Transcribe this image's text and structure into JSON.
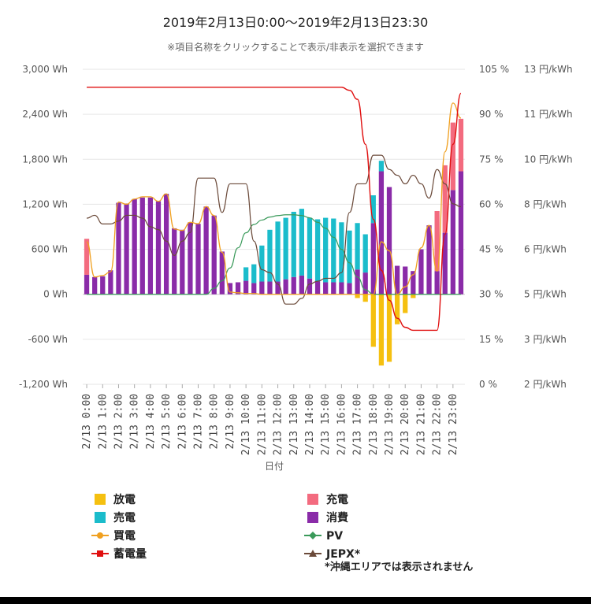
{
  "title": "2019年2月13日0:00～2019年2月13日23:30",
  "subtitle": "※項目名称をクリックすることで表示/非表示を選択できます",
  "chart_data": {
    "type": "bar",
    "xlabel": "日付",
    "x_tick_labels": [
      "2/13 0:00",
      "2/13 1:00",
      "2/13 2:00",
      "2/13 3:00",
      "2/13 4:00",
      "2/13 5:00",
      "2/13 6:00",
      "2/13 7:00",
      "2/13 8:00",
      "2/13 9:00",
      "2/13 10:00",
      "2/13 11:00",
      "2/13 12:00",
      "2/13 13:00",
      "2/13 14:00",
      "2/13 15:00",
      "2/13 16:00",
      "2/13 17:00",
      "2/13 18:00",
      "2/13 19:00",
      "2/13 20:00",
      "2/13 21:00",
      "2/13 22:00",
      "2/13 23:00"
    ],
    "y_left": {
      "unit": "Wh",
      "range": [
        -1200,
        3000
      ],
      "ticks": [
        "-1,200 Wh",
        "-600 Wh",
        "0 Wh",
        "600 Wh",
        "1,200 Wh",
        "1,800 Wh",
        "2,400 Wh",
        "3,000 Wh"
      ]
    },
    "y_mid": {
      "unit": "%",
      "range": [
        0,
        105
      ],
      "ticks": [
        "0 %",
        "15 %",
        "30 %",
        "45 %",
        "60 %",
        "75 %",
        "90 %",
        "105 %"
      ]
    },
    "y_right": {
      "unit": "円/kWh",
      "range": [
        2,
        13
      ],
      "ticks": [
        "2 円/kWh",
        "3 円/kWh",
        "5 円/kWh",
        "6 円/kWh",
        "8 円/kWh",
        "10 円/kWh",
        "11 円/kWh",
        "13 円/kWh"
      ]
    },
    "n_slots": 48,
    "series": [
      {
        "name": "放電",
        "kind": "bar",
        "color": "#f5c010",
        "values": [
          0,
          0,
          0,
          0,
          0,
          0,
          0,
          0,
          0,
          0,
          0,
          0,
          0,
          0,
          0,
          0,
          0,
          0,
          0,
          0,
          0,
          0,
          0,
          0,
          0,
          0,
          0,
          0,
          0,
          0,
          0,
          0,
          0,
          0,
          -50,
          -100,
          -700,
          -950,
          -900,
          -400,
          -250,
          -50,
          0,
          0,
          0,
          0,
          0,
          0
        ]
      },
      {
        "name": "充電",
        "kind": "bar",
        "color": "#f36b7f",
        "values": [
          480,
          0,
          0,
          0,
          0,
          0,
          0,
          0,
          0,
          0,
          0,
          0,
          0,
          0,
          0,
          0,
          0,
          0,
          0,
          0,
          0,
          0,
          0,
          0,
          0,
          0,
          0,
          0,
          0,
          0,
          0,
          0,
          0,
          0,
          0,
          0,
          0,
          0,
          0,
          0,
          0,
          0,
          0,
          0,
          800,
          900,
          900,
          700
        ]
      },
      {
        "name": "売電",
        "kind": "bar",
        "color": "#1bbccb",
        "values": [
          0,
          0,
          0,
          0,
          0,
          0,
          0,
          0,
          0,
          0,
          0,
          0,
          0,
          0,
          0,
          0,
          0,
          0,
          0,
          0,
          180,
          250,
          480,
          690,
          800,
          820,
          870,
          890,
          810,
          830,
          860,
          850,
          800,
          700,
          620,
          510,
          370,
          140,
          0,
          0,
          0,
          0,
          0,
          0,
          0,
          0,
          0,
          0
        ]
      },
      {
        "name": "消費",
        "kind": "bar",
        "color": "#8a2ba8",
        "values": [
          260,
          230,
          240,
          320,
          1220,
          1210,
          1270,
          1290,
          1290,
          1240,
          1340,
          880,
          860,
          960,
          940,
          1170,
          1050,
          570,
          150,
          160,
          180,
          150,
          170,
          170,
          170,
          200,
          230,
          250,
          210,
          170,
          160,
          160,
          160,
          150,
          330,
          290,
          950,
          1640,
          1430,
          380,
          370,
          310,
          600,
          920,
          310,
          820,
          1390,
          1640
        ]
      },
      {
        "name": "買電",
        "kind": "line",
        "color": "#f0a020",
        "values": [
          700,
          230,
          250,
          300,
          1230,
          1200,
          1270,
          1300,
          1300,
          1240,
          1340,
          870,
          850,
          960,
          940,
          1170,
          1050,
          560,
          30,
          20,
          10,
          10,
          0,
          0,
          0,
          0,
          0,
          0,
          0,
          0,
          0,
          0,
          0,
          0,
          0,
          0,
          0,
          700,
          580,
          0,
          100,
          260,
          620,
          920,
          310,
          1900,
          2550,
          2350
        ]
      },
      {
        "name": "PV",
        "kind": "line",
        "color": "#3a9a5a",
        "values": [
          0,
          0,
          0,
          0,
          0,
          0,
          0,
          0,
          0,
          0,
          0,
          0,
          0,
          0,
          0,
          0,
          80,
          180,
          350,
          620,
          820,
          930,
          990,
          1030,
          1050,
          1060,
          1060,
          1050,
          1020,
          960,
          880,
          760,
          600,
          420,
          230,
          60,
          0,
          0,
          0,
          0,
          0,
          0,
          0,
          0,
          0,
          0,
          0,
          0
        ]
      },
      {
        "name": "蓄電量",
        "kind": "line",
        "axis": "pct",
        "color": "#e01010",
        "values": [
          99,
          99,
          99,
          99,
          99,
          99,
          99,
          99,
          99,
          99,
          99,
          99,
          99,
          99,
          99,
          99,
          99,
          99,
          99,
          99,
          99,
          99,
          99,
          99,
          99,
          99,
          99,
          99,
          99,
          99,
          99,
          99,
          99,
          98,
          95,
          80,
          55,
          38,
          28,
          22,
          19,
          18,
          18,
          18,
          18,
          50,
          80,
          97
        ]
      },
      {
        "name": "JEPX*",
        "kind": "line",
        "axis": "yen",
        "color": "#6b4a3a",
        "values": [
          7.8,
          7.9,
          7.6,
          7.6,
          7.7,
          7.9,
          7.9,
          7.8,
          7.5,
          7.4,
          7.0,
          6.5,
          7.0,
          7.3,
          9.2,
          9.2,
          9.2,
          8.0,
          9.0,
          9.0,
          9.0,
          7.0,
          6.0,
          5.9,
          5.5,
          4.8,
          4.8,
          5.0,
          5.5,
          5.6,
          5.7,
          5.7,
          5.9,
          8.0,
          9.0,
          9.0,
          10.0,
          10.0,
          9.5,
          9.3,
          9.0,
          9.3,
          9.0,
          8.5,
          9.5,
          9.0,
          8.3,
          8.2
        ]
      }
    ]
  },
  "legend": {
    "items": [
      {
        "label": "放電",
        "color": "#f5c010",
        "marker": "square"
      },
      {
        "label": "充電",
        "color": "#f36b7f",
        "marker": "square"
      },
      {
        "label": "売電",
        "color": "#1bbccb",
        "marker": "square"
      },
      {
        "label": "消費",
        "color": "#8a2ba8",
        "marker": "square"
      },
      {
        "label": "買電",
        "color": "#f0a020",
        "marker": "line-circle"
      },
      {
        "label": "PV",
        "color": "#3a9a5a",
        "marker": "line-diamond"
      },
      {
        "label": "蓄電量",
        "color": "#e01010",
        "marker": "line-square"
      },
      {
        "label": "JEPX*",
        "color": "#6b4a3a",
        "marker": "line-triangle"
      }
    ],
    "note": "*沖縄エリアでは表示されません"
  }
}
